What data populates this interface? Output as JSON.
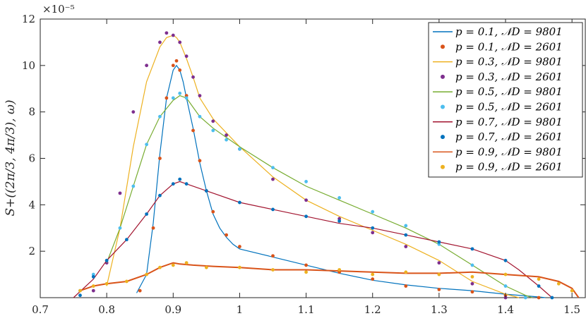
{
  "chart_data": {
    "type": "line",
    "title": "",
    "xlabel": "",
    "ylabel": "S+((2π/3, 4π/3), ω)",
    "y_scale_label": "×10⁻⁵",
    "xlim": [
      0.7,
      1.52
    ],
    "ylim": [
      0,
      12
    ],
    "x_ticks": [
      "0.7",
      "0.8",
      "0.9",
      "1",
      "1.1",
      "1.2",
      "1.3",
      "1.4",
      "1.5"
    ],
    "y_ticks": [
      "2",
      "4",
      "6",
      "8",
      "10",
      "12"
    ],
    "legend_position": "top-right",
    "series": [
      {
        "name": "p = 0.1, 𝒩D = 9801",
        "style": "line",
        "color": "#0072BD",
        "x": [
          0.845,
          0.86,
          0.87,
          0.88,
          0.89,
          0.9,
          0.905,
          0.91,
          0.915,
          0.92,
          0.93,
          0.94,
          0.95,
          0.96,
          0.97,
          0.98,
          0.99,
          1.0,
          1.05,
          1.1,
          1.15,
          1.2,
          1.25,
          1.3,
          1.35,
          1.4,
          1.43,
          1.45,
          1.46
        ],
        "y": [
          0.2,
          1.0,
          3.2,
          6.2,
          8.6,
          9.8,
          10.0,
          9.8,
          9.3,
          8.6,
          7.3,
          5.8,
          4.6,
          3.6,
          3.0,
          2.6,
          2.3,
          2.1,
          1.75,
          1.4,
          1.05,
          0.75,
          0.55,
          0.4,
          0.3,
          0.15,
          0.08,
          0.03,
          0.0
        ]
      },
      {
        "name": "p = 0.1, 𝒩D = 2601",
        "style": "dots",
        "color": "#D95319",
        "x": [
          0.85,
          0.87,
          0.88,
          0.89,
          0.9,
          0.905,
          0.91,
          0.92,
          0.93,
          0.94,
          0.95,
          0.96,
          0.98,
          1.0,
          1.05,
          1.1,
          1.15,
          1.2,
          1.25,
          1.3,
          1.35,
          1.4,
          1.45
        ],
        "y": [
          0.3,
          3.0,
          6.0,
          8.6,
          10.0,
          10.2,
          9.8,
          8.7,
          7.2,
          5.9,
          4.6,
          3.7,
          2.7,
          2.2,
          1.8,
          1.4,
          1.1,
          0.8,
          0.5,
          0.35,
          0.25,
          0.1,
          0.0
        ]
      },
      {
        "name": "p = 0.3, 𝒩D = 9801",
        "style": "line",
        "color": "#EDB120",
        "x": [
          0.8,
          0.82,
          0.84,
          0.86,
          0.88,
          0.89,
          0.9,
          0.905,
          0.91,
          0.92,
          0.93,
          0.94,
          0.96,
          0.98,
          1.0,
          1.05,
          1.1,
          1.15,
          1.2,
          1.25,
          1.3,
          1.35,
          1.4,
          1.42
        ],
        "y": [
          0.5,
          3.0,
          6.5,
          9.3,
          10.8,
          11.2,
          11.3,
          11.2,
          11.0,
          10.3,
          9.5,
          8.6,
          7.7,
          7.1,
          6.5,
          5.2,
          4.2,
          3.5,
          2.9,
          2.3,
          1.6,
          0.7,
          0.15,
          0.0
        ]
      },
      {
        "name": "p = 0.3, 𝒩D = 2601",
        "style": "dots",
        "color": "#7E2F8E",
        "x": [
          0.78,
          0.8,
          0.82,
          0.84,
          0.86,
          0.88,
          0.89,
          0.9,
          0.91,
          0.92,
          0.93,
          0.94,
          0.96,
          0.98,
          1.0,
          1.05,
          1.1,
          1.15,
          1.2,
          1.25,
          1.3,
          1.35,
          1.4
        ],
        "y": [
          0.3,
          1.5,
          4.5,
          8.0,
          10.0,
          11.0,
          11.4,
          11.3,
          11.0,
          10.4,
          9.5,
          8.7,
          7.6,
          7.0,
          6.4,
          5.1,
          4.2,
          3.4,
          2.8,
          2.2,
          1.5,
          0.6,
          0.0
        ]
      },
      {
        "name": "p = 0.5, 𝒩D = 9801",
        "style": "line",
        "color": "#77AC30",
        "x": [
          0.8,
          0.82,
          0.84,
          0.86,
          0.88,
          0.9,
          0.91,
          0.92,
          0.93,
          0.94,
          0.96,
          0.98,
          1.0,
          1.05,
          1.1,
          1.15,
          1.2,
          1.25,
          1.3,
          1.35,
          1.4,
          1.43,
          1.44
        ],
        "y": [
          1.5,
          3.0,
          4.8,
          6.6,
          7.8,
          8.5,
          8.7,
          8.6,
          8.2,
          7.8,
          7.3,
          6.9,
          6.5,
          5.6,
          4.8,
          4.2,
          3.6,
          3.0,
          2.3,
          1.4,
          0.5,
          0.1,
          0.0
        ]
      },
      {
        "name": "p = 0.5, 𝒩D = 2601",
        "style": "dots",
        "color": "#4DBEEE",
        "x": [
          0.76,
          0.78,
          0.8,
          0.82,
          0.84,
          0.86,
          0.88,
          0.9,
          0.91,
          0.92,
          0.94,
          0.96,
          0.98,
          1.0,
          1.05,
          1.1,
          1.15,
          1.2,
          1.25,
          1.3,
          1.35,
          1.4,
          1.43
        ],
        "y": [
          0.3,
          1.0,
          1.6,
          3.0,
          4.8,
          6.6,
          7.8,
          8.6,
          8.8,
          8.6,
          7.8,
          7.2,
          6.8,
          6.4,
          5.6,
          5.0,
          4.3,
          3.7,
          3.1,
          2.3,
          1.4,
          0.5,
          0.0
        ]
      },
      {
        "name": "p = 0.7, 𝒩D = 9801",
        "style": "line",
        "color": "#A2142F",
        "x": [
          0.75,
          0.78,
          0.8,
          0.83,
          0.86,
          0.88,
          0.9,
          0.91,
          0.92,
          0.95,
          1.0,
          1.05,
          1.1,
          1.15,
          1.2,
          1.25,
          1.3,
          1.35,
          1.4,
          1.42,
          1.45,
          1.47
        ],
        "y": [
          0.0,
          0.8,
          1.6,
          2.5,
          3.6,
          4.4,
          4.9,
          5.0,
          4.9,
          4.6,
          4.1,
          3.8,
          3.5,
          3.2,
          3.0,
          2.7,
          2.4,
          2.1,
          1.6,
          1.2,
          0.5,
          0.0
        ]
      },
      {
        "name": "p = 0.7, 𝒩D = 2601",
        "style": "dots",
        "color": "#0072BD",
        "x": [
          0.76,
          0.78,
          0.8,
          0.83,
          0.86,
          0.88,
          0.9,
          0.91,
          0.92,
          0.95,
          1.0,
          1.05,
          1.1,
          1.15,
          1.2,
          1.25,
          1.3,
          1.35,
          1.4,
          1.45,
          1.47
        ],
        "y": [
          0.1,
          0.9,
          1.6,
          2.5,
          3.6,
          4.4,
          4.9,
          5.1,
          4.9,
          4.6,
          4.1,
          3.8,
          3.5,
          3.3,
          3.0,
          2.7,
          2.4,
          2.1,
          1.6,
          0.5,
          0.0
        ]
      },
      {
        "name": "p = 0.9, 𝒩D = 9801",
        "style": "line",
        "color": "#D95319",
        "x": [
          0.76,
          0.78,
          0.8,
          0.83,
          0.86,
          0.88,
          0.9,
          0.91,
          0.93,
          0.96,
          1.0,
          1.05,
          1.1,
          1.15,
          1.2,
          1.25,
          1.3,
          1.35,
          1.4,
          1.45,
          1.48,
          1.5,
          1.51
        ],
        "y": [
          0.3,
          0.5,
          0.6,
          0.7,
          1.0,
          1.3,
          1.5,
          1.45,
          1.4,
          1.35,
          1.3,
          1.2,
          1.2,
          1.15,
          1.1,
          1.05,
          1.05,
          1.1,
          1.0,
          0.9,
          0.7,
          0.4,
          0.0
        ]
      },
      {
        "name": "p = 0.9, 𝒩D = 2601",
        "style": "dots",
        "color": "#EDB120",
        "x": [
          0.76,
          0.78,
          0.8,
          0.83,
          0.86,
          0.88,
          0.9,
          0.92,
          0.95,
          1.0,
          1.05,
          1.1,
          1.15,
          1.2,
          1.25,
          1.3,
          1.35,
          1.4,
          1.45,
          1.48,
          1.5
        ],
        "y": [
          0.3,
          0.5,
          0.6,
          0.7,
          1.0,
          1.3,
          1.4,
          1.5,
          1.3,
          1.3,
          1.2,
          1.1,
          1.2,
          1.0,
          1.1,
          1.0,
          0.9,
          1.0,
          0.8,
          0.6,
          0.3
        ]
      }
    ]
  }
}
